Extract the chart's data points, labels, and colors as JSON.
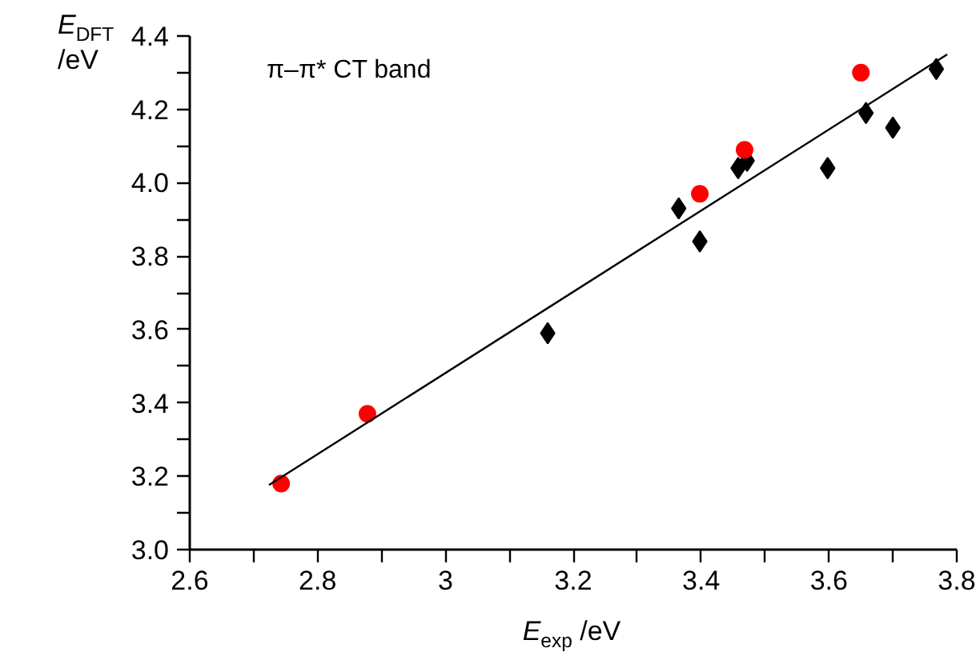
{
  "chart_data": {
    "type": "scatter",
    "xlabel": "E$_{exp}$ /eV",
    "ylabel": "E$_{DFT}$ /eV",
    "annotations": [
      "π–π* CT band"
    ],
    "xlim": [
      2.6,
      3.8
    ],
    "ylim": [
      3.0,
      4.4
    ],
    "xticks": [
      2.6,
      {
        "value": 2.7,
        "label": null
      },
      2.8,
      {
        "value": 2.9,
        "label": null
      },
      3,
      {
        "value": 3.1,
        "label": null
      },
      3.2,
      {
        "value": 3.3,
        "label": null
      },
      3.4,
      {
        "value": 3.5,
        "label": null
      },
      3.6,
      {
        "value": 3.7,
        "label": null
      },
      3.8
    ],
    "yticks": [
      {
        "value": 3.0,
        "label": "3.0"
      },
      {
        "value": 3.1,
        "label": null
      },
      3.2,
      {
        "value": 3.3,
        "label": null
      },
      3.4,
      {
        "value": 3.5,
        "label": null
      },
      3.6,
      {
        "value": 3.7,
        "label": null
      },
      3.8,
      {
        "value": 3.9,
        "label": null
      },
      {
        "value": 4.0,
        "label": "4.0"
      },
      {
        "value": 4.1,
        "label": null
      },
      4.2,
      {
        "value": 4.3,
        "label": null
      },
      4.4
    ],
    "grid": false,
    "series": [
      {
        "marker": "diamond",
        "color": "#000000",
        "x": [
          3.16,
          3.365,
          3.398,
          3.458,
          3.472,
          3.598,
          3.658,
          3.7,
          3.768
        ],
        "values": [
          3.59,
          3.93,
          3.84,
          4.04,
          4.06,
          4.04,
          4.19,
          4.15,
          4.31
        ]
      },
      {
        "marker": "circle",
        "color": "#ff0000",
        "x": [
          2.743,
          2.878,
          3.398,
          3.468,
          3.65
        ],
        "values": [
          3.18,
          3.37,
          3.97,
          4.09,
          4.3
        ]
      },
      {
        "type": "line",
        "marker": "none",
        "line_style": "solid",
        "color": "#000000",
        "x": [
          2.724,
          3.785
        ],
        "values": [
          3.176,
          4.35
        ]
      }
    ]
  }
}
